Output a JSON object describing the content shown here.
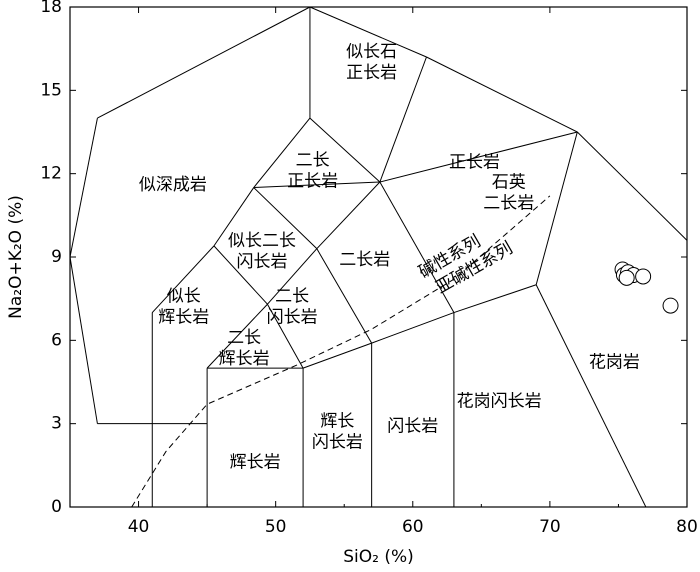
{
  "chart_data": {
    "type": "scatter",
    "xlabel": "SiO₂ (%)",
    "ylabel": "Na₂O+K₂O (%)",
    "xlim": [
      35,
      80
    ],
    "ylim": [
      0,
      18
    ],
    "xticks": [
      40,
      50,
      60,
      70,
      80
    ],
    "yticks": [
      0,
      3,
      6,
      9,
      12,
      15,
      18
    ],
    "grid": false,
    "points": [
      {
        "x": 75.3,
        "y": 8.55
      },
      {
        "x": 75.4,
        "y": 8.35
      },
      {
        "x": 75.7,
        "y": 8.45
      },
      {
        "x": 76.1,
        "y": 8.35
      },
      {
        "x": 76.8,
        "y": 8.3
      },
      {
        "x": 75.6,
        "y": 8.25
      },
      {
        "x": 78.8,
        "y": 7.25
      }
    ],
    "field_boundaries": [
      [
        [
          37,
          3
        ],
        [
          45,
          3
        ]
      ],
      [
        [
          35,
          9
        ],
        [
          37,
          3
        ]
      ],
      [
        [
          35,
          9
        ],
        [
          37,
          14
        ]
      ],
      [
        [
          37,
          14
        ],
        [
          52.5,
          18
        ]
      ],
      [
        [
          52.5,
          18
        ],
        [
          52.5,
          14
        ]
      ],
      [
        [
          52.5,
          14
        ],
        [
          48.4,
          11.5
        ]
      ],
      [
        [
          48.4,
          11.5
        ],
        [
          45.5,
          9.4
        ]
      ],
      [
        [
          45.5,
          9.4
        ],
        [
          41,
          7
        ]
      ],
      [
        [
          41,
          7
        ],
        [
          41,
          0
        ]
      ],
      [
        [
          45,
          0
        ],
        [
          45,
          5
        ]
      ],
      [
        [
          45,
          5
        ],
        [
          49.4,
          7.3
        ]
      ],
      [
        [
          49.4,
          7.3
        ],
        [
          52,
          5
        ]
      ],
      [
        [
          52,
          5
        ],
        [
          57,
          5.9
        ]
      ],
      [
        [
          57,
          5.9
        ],
        [
          63,
          7
        ]
      ],
      [
        [
          63,
          7
        ],
        [
          69,
          8
        ]
      ],
      [
        [
          69,
          8
        ],
        [
          72,
          13.5
        ]
      ],
      [
        [
          72,
          13.5
        ],
        [
          80,
          9.6
        ]
      ],
      [
        [
          52,
          5
        ],
        [
          45,
          5
        ]
      ],
      [
        [
          52,
          0
        ],
        [
          52,
          5
        ]
      ],
      [
        [
          57,
          0
        ],
        [
          57,
          5.9
        ]
      ],
      [
        [
          63,
          0
        ],
        [
          63,
          7
        ]
      ],
      [
        [
          69,
          8
        ],
        [
          77,
          0
        ]
      ],
      [
        [
          49.4,
          7.3
        ],
        [
          45.5,
          9.4
        ]
      ],
      [
        [
          49.4,
          7.3
        ],
        [
          53,
          9.3
        ]
      ],
      [
        [
          53,
          9.3
        ],
        [
          57,
          5.9
        ]
      ],
      [
        [
          53,
          9.3
        ],
        [
          57.6,
          11.7
        ]
      ],
      [
        [
          53,
          9.3
        ],
        [
          48.4,
          11.5
        ]
      ],
      [
        [
          48.4,
          11.5
        ],
        [
          57.6,
          11.7
        ]
      ],
      [
        [
          57.6,
          11.7
        ],
        [
          52.5,
          14
        ]
      ],
      [
        [
          57.6,
          11.7
        ],
        [
          63,
          7
        ]
      ],
      [
        [
          57.6,
          11.7
        ],
        [
          72,
          13.5
        ]
      ],
      [
        [
          57.6,
          11.7
        ],
        [
          61,
          16.2
        ]
      ],
      [
        [
          61,
          16.2
        ],
        [
          52.5,
          18
        ]
      ],
      [
        [
          61,
          16.2
        ],
        [
          72,
          13.5
        ]
      ]
    ],
    "alkaline_divider": [
      [
        39.5,
        0
      ],
      [
        42,
        2
      ],
      [
        45,
        3.7
      ],
      [
        51.5,
        5.1
      ],
      [
        57,
        6.4
      ],
      [
        63,
        8.2
      ],
      [
        70,
        11.2
      ]
    ],
    "field_labels": [
      {
        "text": [
          "似长石",
          "正长岩"
        ],
        "x": 57,
        "y": 16
      },
      {
        "text": [
          "正长岩"
        ],
        "x": 64.5,
        "y": 12.4
      },
      {
        "text": [
          "似深成岩"
        ],
        "x": 42.5,
        "y": 11.6
      },
      {
        "text": [
          "二长",
          "正长岩"
        ],
        "x": 52.7,
        "y": 12.1
      },
      {
        "text": [
          "石英",
          "二长岩"
        ],
        "x": 67,
        "y": 11.3
      },
      {
        "text": [
          "似长二长",
          "闪长岩"
        ],
        "x": 49,
        "y": 9.2
      },
      {
        "text": [
          "二长岩"
        ],
        "x": 56.5,
        "y": 8.9
      },
      {
        "text": [
          "似长",
          "辉长岩"
        ],
        "x": 43.3,
        "y": 7.2
      },
      {
        "text": [
          "二长",
          "闪长岩"
        ],
        "x": 51.2,
        "y": 7.2
      },
      {
        "text": [
          "二长",
          "辉长岩"
        ],
        "x": 47.7,
        "y": 5.7
      },
      {
        "text": [
          "辉长岩"
        ],
        "x": 48.5,
        "y": 1.6
      },
      {
        "text": [
          "辉长",
          "闪长岩"
        ],
        "x": 54.5,
        "y": 2.7
      },
      {
        "text": [
          "闪长岩"
        ],
        "x": 60,
        "y": 2.9
      },
      {
        "text": [
          "花岗闪长岩"
        ],
        "x": 66.3,
        "y": 3.8
      },
      {
        "text": [
          "花岗岩"
        ],
        "x": 74.7,
        "y": 5.2
      }
    ],
    "series_annotations": [
      {
        "text": "碱性系列",
        "x": 62.7,
        "y": 9.0,
        "angle": -30
      },
      {
        "text": "亚碱性系列",
        "x": 64.5,
        "y": 8.6,
        "angle": -30
      }
    ]
  }
}
